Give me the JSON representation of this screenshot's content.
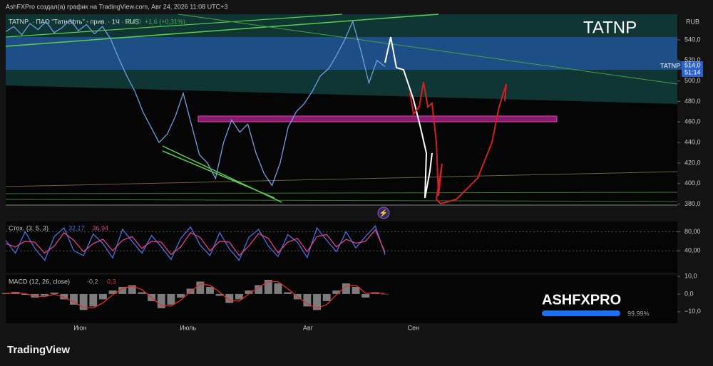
{
  "header": {
    "byline": "AshFXPro создал(а) график на TradingView.com, Авг 24, 2026 11:08 UTC+3",
    "symbol": "TATNP",
    "description": "· ПАО \"Татнефть\" - прив. · 1Ч · RUS",
    "last": "514,0",
    "change": "+1,6 (+0,31%)",
    "currency": "RUB",
    "watermark": "TATNP",
    "price_tag_symbol": "TATNP",
    "price_tag_value": "514,0",
    "price_tag_timer": "51:14",
    "brand": "TradingView",
    "overlay_brand": "ASHFXPRO",
    "overlay_percent": "99.99%"
  },
  "chart_data": [
    {
      "type": "line",
      "ylim": [
        379,
        565
      ],
      "xlim": [
        0,
        140
      ],
      "yticks": [
        {
          "value": 540,
          "label": "540,0"
        },
        {
          "value": 520,
          "label": "520,0"
        },
        {
          "value": 500,
          "label": "500,0"
        },
        {
          "value": 480,
          "label": "480,0"
        },
        {
          "value": 460,
          "label": "460,0"
        },
        {
          "value": 440,
          "label": "440,0"
        },
        {
          "value": 420,
          "label": "420,0"
        },
        {
          "value": 400,
          "label": "400,0"
        },
        {
          "value": 380,
          "label": "380,0"
        }
      ],
      "xticks": [
        {
          "value": 15.5,
          "label": "Июн"
        },
        {
          "value": 38,
          "label": "Июль"
        },
        {
          "value": 63,
          "label": "Авг"
        },
        {
          "value": 85,
          "label": "Сен"
        }
      ],
      "series": [
        {
          "name": "TATNP",
          "color": "#6f9fe0",
          "values": [
            548,
            553,
            545,
            556,
            550,
            558,
            547,
            552,
            560,
            549,
            555,
            546,
            553,
            541,
            522,
            505,
            490,
            470,
            455,
            440,
            448,
            465,
            488,
            458,
            428,
            420,
            405,
            440,
            462,
            450,
            458,
            430,
            410,
            398,
            420,
            455,
            470,
            478,
            490,
            505,
            512,
            525,
            540,
            558,
            530,
            498,
            520,
            514
          ]
        }
      ]
    },
    {
      "type": "line",
      "label": "Стох. (3, 5, 3)",
      "ylim": [
        -6,
        101.5
      ],
      "yticks": [
        {
          "value": 80,
          "label": "80,00"
        },
        {
          "value": 40,
          "label": "40,00"
        }
      ],
      "grid": true,
      "series": [
        {
          "name": "32,17",
          "color": "#4a6fe0",
          "values": [
            62,
            35,
            80,
            45,
            20,
            70,
            88,
            40,
            30,
            75,
            55,
            25,
            85,
            60,
            35,
            72,
            48,
            22,
            66,
            90,
            52,
            30,
            78,
            44,
            20,
            68,
            85,
            50,
            28,
            74,
            58,
            26,
            88,
            62,
            38,
            80,
            46,
            70,
            92,
            32
          ]
        },
        {
          "name": "36,94",
          "color": "#e0408a",
          "values": [
            55,
            48,
            60,
            58,
            35,
            50,
            78,
            62,
            38,
            55,
            64,
            40,
            62,
            70,
            45,
            60,
            58,
            32,
            48,
            78,
            68,
            40,
            60,
            58,
            30,
            50,
            76,
            66,
            36,
            58,
            66,
            38,
            70,
            74,
            48,
            64,
            56,
            60,
            84,
            37
          ]
        }
      ]
    },
    {
      "type": "bar",
      "label": "MACD (12, 26, close)",
      "ylim": [
        -16.5,
        10.8
      ],
      "yticks": [
        {
          "value": 10,
          "label": "10,0"
        },
        {
          "value": 0,
          "label": "0,0"
        },
        {
          "value": -10,
          "label": "−10,0"
        }
      ],
      "series": [
        {
          "name": "-0,2",
          "color": "#9a9a9a",
          "values": [
            0.5,
            1.2,
            -0.5,
            -2,
            -1,
            0.8,
            -3,
            -6,
            -9,
            -7,
            -3,
            2,
            4,
            5,
            1,
            -4,
            -8,
            -6,
            -2,
            3,
            7,
            4,
            -1,
            -5,
            -3,
            2,
            5,
            8,
            6,
            1,
            -3,
            -7,
            -9,
            -4,
            2,
            6,
            4,
            -2,
            1,
            -0.2
          ]
        },
        {
          "name": "0,3",
          "color": "#e03030",
          "values": [
            0.3,
            0.8,
            0.2,
            -1.2,
            -1.5,
            -0.2,
            -1.8,
            -4.5,
            -7.5,
            -7.8,
            -5,
            -0.5,
            3,
            4.5,
            2.5,
            -2,
            -6.5,
            -6.8,
            -3.5,
            1.5,
            5.5,
            5,
            1,
            -3.5,
            -4,
            0,
            3.8,
            7,
            7,
            3,
            -1.5,
            -5.5,
            -8,
            -6,
            -0.5,
            4.5,
            5,
            0.5,
            0.5,
            0.3
          ]
        }
      ]
    }
  ]
}
